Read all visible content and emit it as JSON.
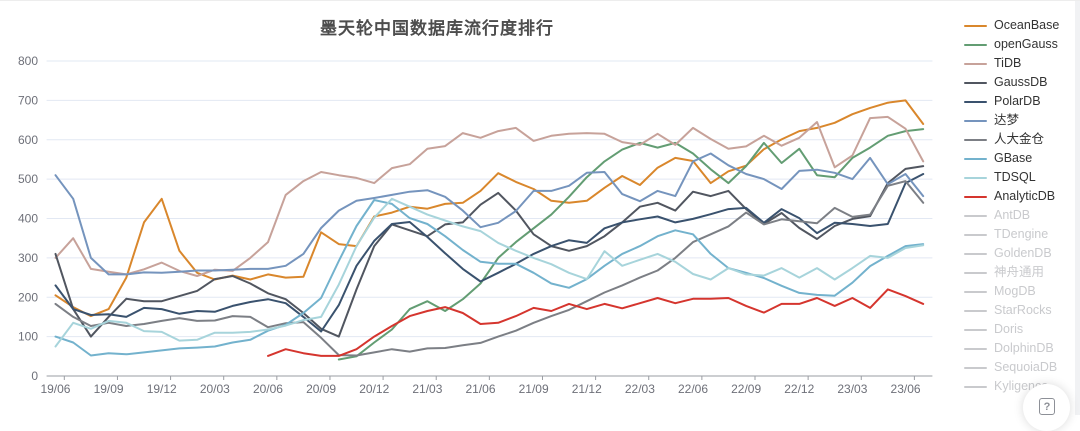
{
  "title": {
    "text": "墨天轮中国数据库流行度排行"
  },
  "help_button": {
    "label": "?"
  },
  "legend": {
    "items": [
      {
        "label": "OceanBase",
        "color": "#d9872c",
        "active": true
      },
      {
        "label": "openGauss",
        "color": "#639d73",
        "active": true
      },
      {
        "label": "TiDB",
        "color": "#c7a29a",
        "active": true
      },
      {
        "label": "GaussDB",
        "color": "#515660",
        "active": true
      },
      {
        "label": "PolarDB",
        "color": "#3a526e",
        "active": true
      },
      {
        "label": "达梦",
        "color": "#7594bd",
        "active": true
      },
      {
        "label": "人大金仓",
        "color": "#7c7f85",
        "active": true
      },
      {
        "label": "GBase",
        "color": "#73b2cd",
        "active": true
      },
      {
        "label": "TDSQL",
        "color": "#a7d4db",
        "active": true
      },
      {
        "label": "AnalyticDB",
        "color": "#d5352e",
        "active": true
      },
      {
        "label": "AntDB",
        "color": "#c9cacd",
        "active": false
      },
      {
        "label": "TDengine",
        "color": "#c9cacd",
        "active": false
      },
      {
        "label": "GoldenDB",
        "color": "#c9cacd",
        "active": false
      },
      {
        "label": "神舟通用",
        "color": "#c9cacd",
        "active": false
      },
      {
        "label": "MogDB",
        "color": "#c9cacd",
        "active": false
      },
      {
        "label": "StarRocks",
        "color": "#c9cacd",
        "active": false
      },
      {
        "label": "Doris",
        "color": "#c9cacd",
        "active": false
      },
      {
        "label": "DolphinDB",
        "color": "#c9cacd",
        "active": false
      },
      {
        "label": "SequoiaDB",
        "color": "#c9cacd",
        "active": false
      },
      {
        "label": "Kyligence",
        "color": "#c9cacd",
        "active": false
      }
    ]
  },
  "chart_data": {
    "type": "line",
    "title": "墨天轮中国数据库流行度排行",
    "grid": "horizontal",
    "y_axis": {
      "min": 0,
      "max": 800,
      "step": 100,
      "tick_labels": [
        "0",
        "100",
        "200",
        "300",
        "400",
        "500",
        "600",
        "700",
        "800"
      ]
    },
    "x_tick_labels": [
      "19/06",
      "19/09",
      "19/12",
      "20/03",
      "20/06",
      "20/09",
      "20/12",
      "21/03",
      "21/06",
      "21/09",
      "21/12",
      "22/03",
      "22/06",
      "22/09",
      "22/12",
      "23/03",
      "23/06"
    ],
    "months": [
      "19/06",
      "19/07",
      "19/08",
      "19/09",
      "19/10",
      "19/11",
      "19/12",
      "20/01",
      "20/02",
      "20/03",
      "20/04",
      "20/05",
      "20/06",
      "20/07",
      "20/08",
      "20/09",
      "20/10",
      "20/11",
      "20/12",
      "21/01",
      "21/02",
      "21/03",
      "21/04",
      "21/05",
      "21/06",
      "21/07",
      "21/08",
      "21/09",
      "21/10",
      "21/11",
      "21/12",
      "22/01",
      "22/02",
      "22/03",
      "22/04",
      "22/05",
      "22/06",
      "22/07",
      "22/08",
      "22/09",
      "22/10",
      "22/11",
      "22/12",
      "23/01",
      "23/02",
      "23/03",
      "23/04",
      "23/05",
      "23/06",
      "23/07"
    ],
    "series": [
      {
        "name": "OceanBase",
        "color": "#d9872c",
        "values": [
          205,
          175,
          152,
          170,
          250,
          390,
          450,
          318,
          262,
          245,
          255,
          245,
          258,
          250,
          252,
          365,
          335,
          330,
          405,
          415,
          430,
          425,
          437,
          440,
          470,
          515,
          493,
          475,
          445,
          440,
          445,
          478,
          508,
          485,
          529,
          554,
          546,
          490,
          520,
          534,
          576,
          601,
          622,
          630,
          643,
          665,
          681,
          694,
          700,
          640
        ]
      },
      {
        "name": "openGauss",
        "color": "#639d73",
        "values": [
          null,
          null,
          null,
          null,
          null,
          null,
          null,
          null,
          null,
          null,
          null,
          null,
          null,
          null,
          null,
          null,
          42,
          50,
          85,
          118,
          170,
          190,
          165,
          195,
          235,
          300,
          340,
          375,
          410,
          455,
          505,
          545,
          575,
          592,
          580,
          592,
          565,
          525,
          490,
          533,
          592,
          541,
          577,
          510,
          505,
          554,
          580,
          610,
          622,
          627
        ]
      },
      {
        "name": "TiDB",
        "color": "#c7a29a",
        "values": [
          300,
          350,
          272,
          265,
          258,
          271,
          288,
          267,
          254,
          270,
          267,
          300,
          340,
          460,
          495,
          518,
          510,
          503,
          490,
          528,
          538,
          577,
          584,
          617,
          605,
          622,
          630,
          597,
          610,
          615,
          617,
          615,
          594,
          587,
          615,
          587,
          630,
          602,
          577,
          583,
          610,
          585,
          605,
          645,
          530,
          560,
          655,
          658,
          628,
          545
        ]
      },
      {
        "name": "GaussDB",
        "color": "#515660",
        "values": [
          310,
          170,
          100,
          150,
          196,
          190,
          190,
          203,
          216,
          246,
          254,
          235,
          210,
          195,
          160,
          120,
          100,
          220,
          330,
          385,
          370,
          355,
          385,
          390,
          435,
          465,
          420,
          360,
          330,
          318,
          330,
          355,
          390,
          430,
          440,
          420,
          468,
          457,
          470,
          424,
          386,
          414,
          376,
          348,
          381,
          399,
          406,
          490,
          526,
          533
        ]
      },
      {
        "name": "PolarDB",
        "color": "#3a526e",
        "values": [
          230,
          170,
          155,
          157,
          150,
          173,
          170,
          158,
          165,
          163,
          178,
          188,
          195,
          185,
          150,
          113,
          180,
          280,
          343,
          386,
          391,
          353,
          312,
          272,
          240,
          262,
          285,
          310,
          330,
          345,
          338,
          375,
          390,
          398,
          405,
          390,
          399,
          411,
          424,
          427,
          389,
          424,
          401,
          363,
          389,
          386,
          381,
          386,
          490,
          513
        ]
      },
      {
        "name": "达梦",
        "color": "#7594bd",
        "values": [
          510,
          450,
          300,
          258,
          258,
          263,
          262,
          265,
          268,
          268,
          270,
          272,
          272,
          280,
          310,
          376,
          420,
          445,
          452,
          460,
          468,
          472,
          455,
          420,
          378,
          389,
          419,
          470,
          470,
          483,
          516,
          518,
          462,
          444,
          470,
          457,
          545,
          565,
          535,
          513,
          500,
          475,
          521,
          524,
          516,
          500,
          554,
          487,
          513,
          457
        ]
      },
      {
        "name": "人大金仓",
        "color": "#7c7f85",
        "values": [
          183,
          150,
          127,
          135,
          127,
          132,
          140,
          147,
          140,
          141,
          152,
          150,
          124,
          134,
          137,
          97,
          53,
          52,
          60,
          68,
          62,
          70,
          71,
          78,
          84,
          100,
          115,
          135,
          152,
          168,
          190,
          212,
          230,
          250,
          268,
          300,
          340,
          360,
          380,
          415,
          385,
          398,
          393,
          388,
          427,
          404,
          410,
          483,
          495,
          440
        ]
      },
      {
        "name": "GBase",
        "color": "#73b2cd",
        "values": [
          100,
          85,
          52,
          58,
          55,
          60,
          65,
          70,
          72,
          75,
          85,
          92,
          115,
          130,
          160,
          198,
          292,
          381,
          447,
          437,
          401,
          386,
          355,
          320,
          290,
          285,
          285,
          262,
          235,
          224,
          246,
          280,
          310,
          330,
          355,
          370,
          360,
          310,
          274,
          262,
          249,
          229,
          211,
          206,
          204,
          237,
          279,
          305,
          330,
          335
        ]
      },
      {
        "name": "TDSQL",
        "color": "#a7d4db",
        "values": [
          75,
          135,
          120,
          140,
          135,
          114,
          112,
          90,
          92,
          110,
          110,
          112,
          118,
          128,
          142,
          150,
          232,
          330,
          402,
          450,
          430,
          410,
          395,
          380,
          368,
          338,
          318,
          300,
          284,
          262,
          246,
          317,
          280,
          295,
          310,
          290,
          259,
          245,
          274,
          258,
          255,
          274,
          250,
          274,
          245,
          274,
          305,
          300,
          325,
          332
        ]
      },
      {
        "name": "AnalyticDB",
        "color": "#d5352e",
        "values": [
          null,
          null,
          null,
          null,
          null,
          null,
          null,
          null,
          null,
          null,
          null,
          null,
          51,
          68,
          58,
          51,
          51,
          68,
          100,
          127,
          152,
          165,
          175,
          160,
          132,
          135,
          152,
          173,
          165,
          183,
          170,
          183,
          172,
          185,
          198,
          185,
          196,
          196,
          198,
          178,
          161,
          183,
          183,
          198,
          178,
          198,
          173,
          220,
          203,
          183
        ]
      }
    ]
  }
}
